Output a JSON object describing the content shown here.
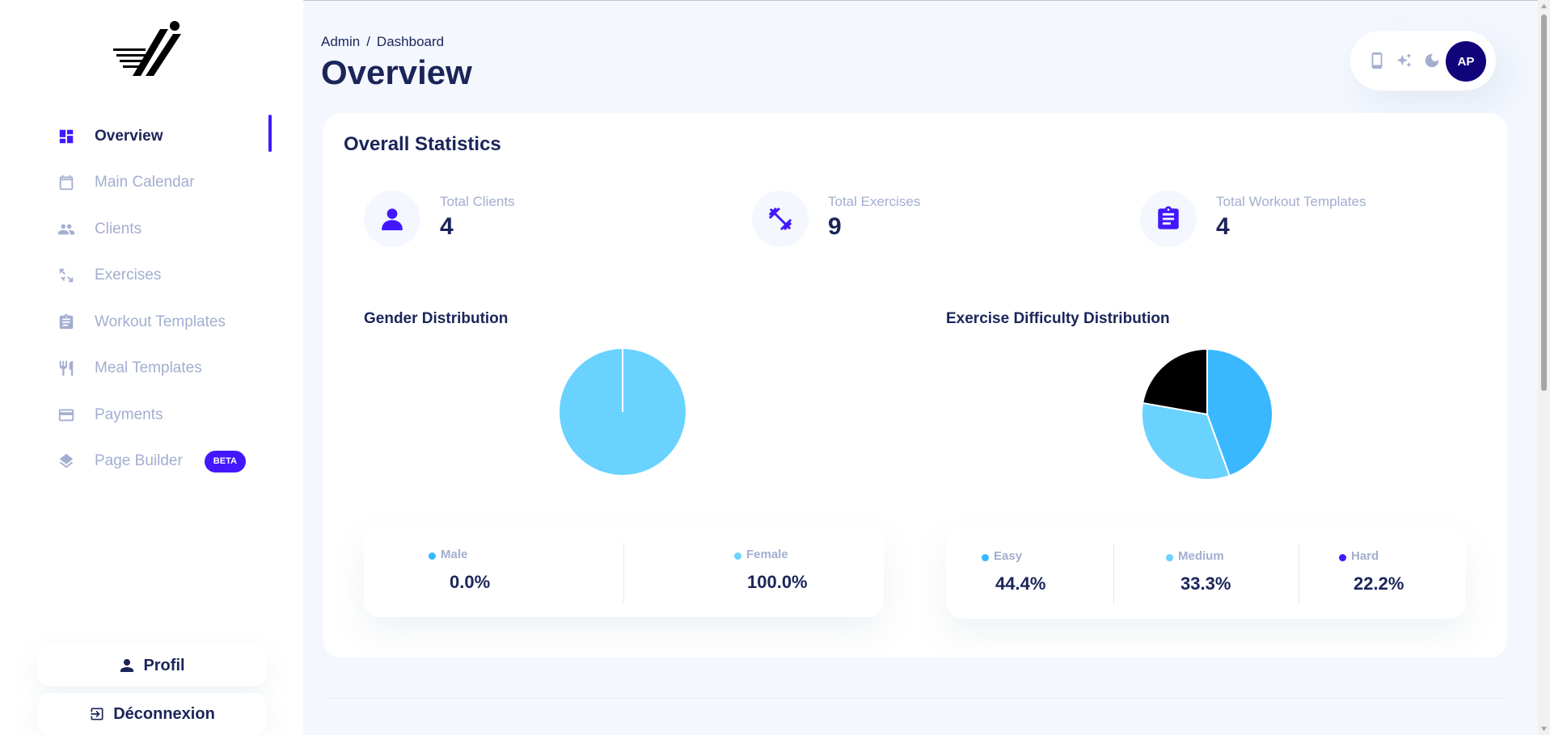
{
  "sidebar": {
    "items": [
      {
        "label": "Overview",
        "icon": "dashboard-icon",
        "active": true
      },
      {
        "label": "Main Calendar",
        "icon": "calendar-icon"
      },
      {
        "label": "Clients",
        "icon": "people-icon"
      },
      {
        "label": "Exercises",
        "icon": "fitness-icon"
      },
      {
        "label": "Workout Templates",
        "icon": "clipboard-icon"
      },
      {
        "label": "Meal Templates",
        "icon": "utensils-icon"
      },
      {
        "label": "Payments",
        "icon": "credit-card-icon"
      },
      {
        "label": "Page Builder",
        "icon": "layers-icon",
        "badge": "BETA"
      }
    ],
    "profile_label": "Profil",
    "logout_label": "Déconnexion"
  },
  "header": {
    "breadcrumb": {
      "root": "Admin",
      "separator": "/",
      "current": "Dashboard"
    },
    "title": "Overview"
  },
  "toolbar": {
    "icons": [
      "phone-icon",
      "sparkle-icon",
      "moon-icon"
    ],
    "avatar_initials": "AP"
  },
  "stats_card": {
    "title": "Overall Statistics",
    "stats": [
      {
        "label": "Total Clients",
        "value": "4",
        "icon": "person-icon"
      },
      {
        "label": "Total Exercises",
        "value": "9",
        "icon": "dumbbell-icon"
      },
      {
        "label": "Total Workout Templates",
        "value": "4",
        "icon": "clipboard-icon"
      }
    ]
  },
  "colors": {
    "accent": "#4318ff",
    "navy": "#1b2559",
    "muted": "#a3aed0",
    "male": "#39b8ff",
    "female": "#6ad2ff",
    "easy": "#39b8ff",
    "medium": "#6ad2ff",
    "hard": "#000000",
    "hard_dot": "#4318ff"
  },
  "chart_data": [
    {
      "type": "pie",
      "title": "Gender Distribution",
      "categories": [
        "Male",
        "Female"
      ],
      "values": [
        0.0,
        100.0
      ],
      "value_labels": [
        "0.0%",
        "100.0%"
      ]
    },
    {
      "type": "pie",
      "title": "Exercise Difficulty Distribution",
      "categories": [
        "Easy",
        "Medium",
        "Hard"
      ],
      "values": [
        44.4,
        33.3,
        22.2
      ],
      "value_labels": [
        "44.4%",
        "33.3%",
        "22.2%"
      ]
    }
  ]
}
